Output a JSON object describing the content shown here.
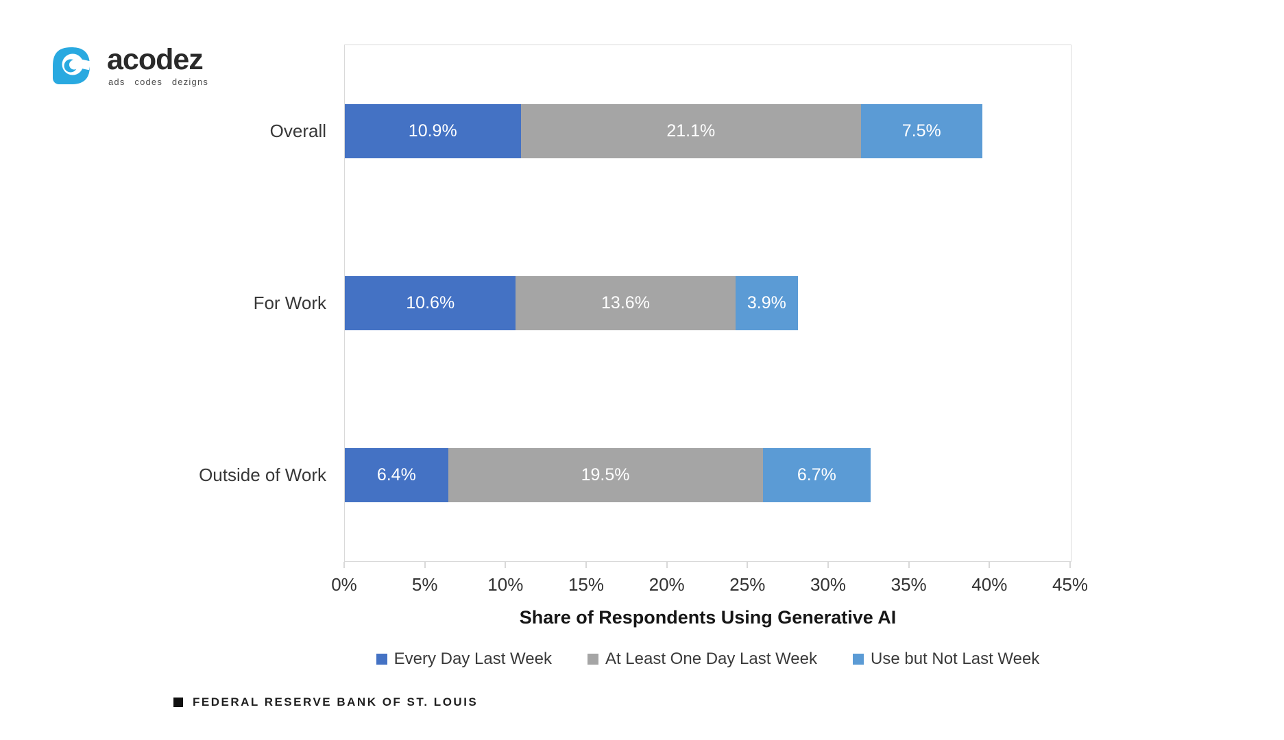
{
  "logo": {
    "name": "acodez",
    "tagline": "ads codes dezigns"
  },
  "chart_data": {
    "type": "bar",
    "orientation": "horizontal",
    "stacked": true,
    "categories": [
      "Overall",
      "For Work",
      "Outside of Work"
    ],
    "series": [
      {
        "name": "Every Day Last Week",
        "color": "#4472C4",
        "values": [
          10.9,
          10.6,
          6.4
        ]
      },
      {
        "name": "At Least One Day Last Week",
        "color": "#A5A5A5",
        "values": [
          21.1,
          13.6,
          19.5
        ]
      },
      {
        "name": "Use but Not Last Week",
        "color": "#5B9BD5",
        "values": [
          7.5,
          3.9,
          6.7
        ]
      }
    ],
    "data_labels": [
      [
        "10.9%",
        "21.1%",
        "7.5%"
      ],
      [
        "10.6%",
        "13.6%",
        "3.9%"
      ],
      [
        "6.4%",
        "19.5%",
        "6.7%"
      ]
    ],
    "xlabel": "Share of Respondents Using Generative AI",
    "ylabel": "",
    "xlim": [
      0,
      45
    ],
    "x_tick_labels": [
      "0%",
      "5%",
      "10%",
      "15%",
      "20%",
      "25%",
      "30%",
      "35%",
      "40%",
      "45%"
    ],
    "grid": false,
    "legend_position": "bottom",
    "plot_border_color": "#D9D9D9",
    "accent_color": "#29A9E0"
  },
  "footer": {
    "source_label": "FEDERAL RESERVE BANK OF ST. LOUIS"
  }
}
